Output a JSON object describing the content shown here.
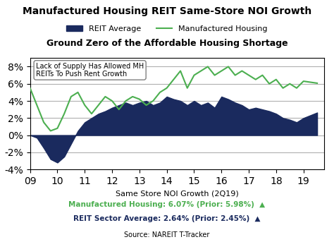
{
  "chart_data": {
    "type": "line",
    "title": "Manufactured Housing REIT Same-Store NOI Growth",
    "subtitle": "Ground Zero of the Affordable Housing Shortage",
    "x_label": "Same Store NOI Growth (2Q19)",
    "source": "Source: NAREIT T-Tracker",
    "annotation": "Lack of Supply Has Allowed MH\nREITs To Push Rent Growth",
    "annotations": [
      {
        "text": "Manufactured Housing: 6.07% (Prior: 5.98%)  ▲",
        "color": "#4caf50"
      },
      {
        "text": "REIT Sector Average: 2.64% (Prior: 2.45%)  ▲",
        "color": "#1a2a5e"
      }
    ],
    "x": [
      2009.0,
      2009.25,
      2009.5,
      2009.75,
      2010.0,
      2010.25,
      2010.5,
      2010.75,
      2011.0,
      2011.25,
      2011.5,
      2011.75,
      2012.0,
      2012.25,
      2012.5,
      2012.75,
      2013.0,
      2013.25,
      2013.5,
      2013.75,
      2014.0,
      2014.25,
      2014.5,
      2014.75,
      2015.0,
      2015.25,
      2015.5,
      2015.75,
      2016.0,
      2016.25,
      2016.5,
      2016.75,
      2017.0,
      2017.25,
      2017.5,
      2017.75,
      2018.0,
      2018.25,
      2018.5,
      2018.75,
      2019.0,
      2019.5
    ],
    "series": [
      {
        "name": "REIT Average",
        "type": "area",
        "color": "#1a2a5e",
        "values": [
          0.0,
          -0.3,
          -1.5,
          -2.8,
          -3.2,
          -2.5,
          -1.0,
          0.5,
          1.5,
          2.0,
          2.5,
          2.8,
          3.2,
          3.5,
          3.8,
          3.5,
          3.8,
          4.0,
          3.5,
          3.8,
          4.5,
          4.2,
          4.0,
          3.5,
          4.0,
          3.5,
          3.8,
          3.2,
          4.5,
          4.2,
          3.8,
          3.5,
          3.0,
          3.2,
          3.0,
          2.8,
          2.5,
          2.0,
          1.8,
          1.5,
          2.0,
          2.64
        ]
      },
      {
        "name": "Manufactured Housing",
        "type": "line",
        "color": "#4caf50",
        "values": [
          5.5,
          3.5,
          1.5,
          0.5,
          0.8,
          2.5,
          4.5,
          5.0,
          3.5,
          2.5,
          3.5,
          4.5,
          4.0,
          3.0,
          4.0,
          4.5,
          4.2,
          3.5,
          4.0,
          5.0,
          5.5,
          6.5,
          7.5,
          5.5,
          7.0,
          7.5,
          8.0,
          7.0,
          7.5,
          8.0,
          7.0,
          7.5,
          7.0,
          6.5,
          7.0,
          6.0,
          6.5,
          5.5,
          6.0,
          5.5,
          6.3,
          6.07
        ]
      }
    ],
    "xlim": [
      2009,
      2019.75
    ],
    "xticks": [
      {
        "value": 2009,
        "label": "09"
      },
      {
        "value": 2010,
        "label": "10"
      },
      {
        "value": 2011,
        "label": "11"
      },
      {
        "value": 2012,
        "label": "12"
      },
      {
        "value": 2013,
        "label": "13"
      },
      {
        "value": 2014,
        "label": "14"
      },
      {
        "value": 2015,
        "label": "15"
      },
      {
        "value": 2016,
        "label": "16"
      },
      {
        "value": 2017,
        "label": "17"
      },
      {
        "value": 2018,
        "label": "18"
      },
      {
        "value": 2019,
        "label": "19"
      }
    ],
    "ylim": [
      -4,
      9
    ],
    "yticks": [
      {
        "value": -4,
        "label": "-4%"
      },
      {
        "value": -2,
        "label": "-2%"
      },
      {
        "value": 0,
        "label": "0%"
      },
      {
        "value": 2,
        "label": "2%"
      },
      {
        "value": 4,
        "label": "4%"
      },
      {
        "value": 6,
        "label": "6%"
      },
      {
        "value": 8,
        "label": "8%"
      }
    ],
    "grid": "y",
    "legend": "upper center"
  }
}
